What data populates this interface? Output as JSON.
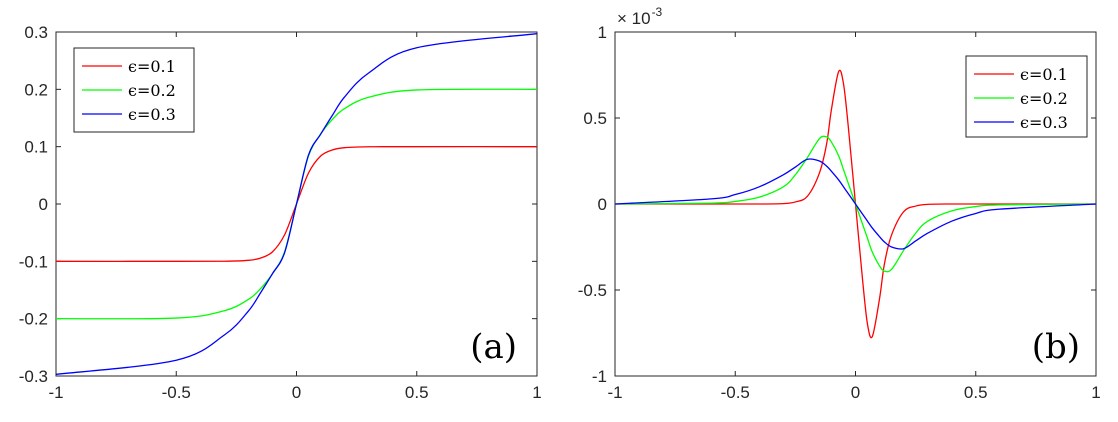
{
  "chart_data": [
    {
      "type": "line",
      "panel_label": "(a)",
      "xlim": [
        -1,
        1
      ],
      "ylim": [
        -0.3,
        0.3
      ],
      "xticks": [
        -1,
        -0.5,
        0,
        0.5,
        1
      ],
      "xtick_labels": [
        "-1",
        "-0.5",
        "0",
        "0.5",
        "1"
      ],
      "yticks": [
        -0.3,
        -0.2,
        -0.1,
        0,
        0.1,
        0.2,
        0.3
      ],
      "ytick_labels": [
        "-0.3",
        "-0.2",
        "-0.1",
        "0",
        "0.1",
        "0.2",
        "0.3"
      ],
      "grid": false,
      "legend_position": "top-left",
      "x": [
        -1,
        -0.5,
        -0.3,
        -0.2,
        -0.15,
        -0.1,
        -0.05,
        0,
        0.05,
        0.1,
        0.15,
        0.2,
        0.3,
        0.5,
        1
      ],
      "series": [
        {
          "name": "ϵ=0.1",
          "color": "#ff0000",
          "values": [
            -0.1,
            -0.1,
            -0.0998,
            -0.0982,
            -0.0944,
            -0.0835,
            -0.0541,
            0,
            0.0541,
            0.0835,
            0.0944,
            0.0982,
            0.0998,
            0.1,
            0.1
          ]
        },
        {
          "name": "ϵ=0.2",
          "color": "#00ff00",
          "values": [
            -0.2,
            -0.1989,
            -0.1861,
            -0.1664,
            -0.1479,
            -0.1217,
            -0.0838,
            0,
            0.0838,
            0.1217,
            0.1479,
            0.1664,
            0.1861,
            0.1989,
            0.2
          ]
        },
        {
          "name": "ϵ=0.3",
          "color": "#0000ff",
          "values": [
            -0.2971,
            -0.2725,
            -0.2285,
            -0.1867,
            -0.1552,
            -0.1215,
            -0.0856,
            0,
            0.0856,
            0.1215,
            0.1552,
            0.1867,
            0.2285,
            0.2725,
            0.2971
          ]
        }
      ]
    },
    {
      "type": "line",
      "panel_label": "(b)",
      "xlim": [
        -1,
        1
      ],
      "ylim": [
        -1,
        1
      ],
      "y_multiplier_base": "× 10",
      "y_multiplier_exponent": "-3",
      "xticks": [
        -1,
        -0.5,
        0,
        0.5,
        1
      ],
      "xtick_labels": [
        "-1",
        "-0.5",
        "0",
        "0.5",
        "1"
      ],
      "yticks": [
        -1,
        -0.5,
        0,
        0.5,
        1
      ],
      "ytick_labels": [
        "-1",
        "-0.5",
        "0",
        "0.5",
        "1"
      ],
      "grid": false,
      "legend_position": "top-right",
      "x": [
        -1,
        -0.6,
        -0.5,
        -0.4,
        -0.3,
        -0.25,
        -0.2,
        -0.15,
        -0.12,
        -0.1,
        -0.07,
        -0.05,
        -0.03,
        0,
        0.03,
        0.05,
        0.07,
        0.1,
        0.12,
        0.15,
        0.2,
        0.25,
        0.3,
        0.4,
        0.5,
        0.6,
        1
      ],
      "series": [
        {
          "name": "ϵ=0.1",
          "color": "#ff0000",
          "values": [
            0,
            0,
            0,
            0,
            0.002,
            0.012,
            0.045,
            0.18,
            0.35,
            0.55,
            0.77,
            0.7,
            0.45,
            0,
            -0.45,
            -0.7,
            -0.77,
            -0.55,
            -0.35,
            -0.18,
            -0.045,
            -0.012,
            -0.002,
            0,
            0,
            0,
            0
          ]
        },
        {
          "name": "ϵ=0.2",
          "color": "#00ff00",
          "values": [
            0,
            0.005,
            0.015,
            0.04,
            0.1,
            0.17,
            0.27,
            0.38,
            0.39,
            0.36,
            0.28,
            0.2,
            0.12,
            0,
            -0.12,
            -0.2,
            -0.28,
            -0.36,
            -0.39,
            -0.38,
            -0.27,
            -0.17,
            -0.1,
            -0.04,
            -0.015,
            -0.005,
            0
          ]
        },
        {
          "name": "ϵ=0.3",
          "color": "#0000ff",
          "values": [
            0,
            0.03,
            0.055,
            0.1,
            0.17,
            0.215,
            0.26,
            0.25,
            0.22,
            0.19,
            0.14,
            0.1,
            0.06,
            0,
            -0.06,
            -0.1,
            -0.14,
            -0.19,
            -0.22,
            -0.25,
            -0.26,
            -0.215,
            -0.17,
            -0.1,
            -0.055,
            -0.03,
            0
          ]
        }
      ]
    }
  ]
}
